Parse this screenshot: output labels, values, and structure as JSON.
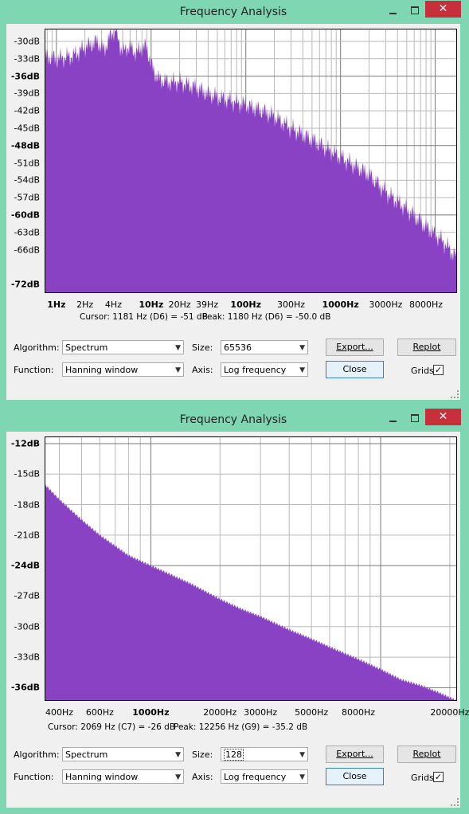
{
  "colors": {
    "fill": "#8a42c4",
    "grid": "#b4b4b4",
    "border": "#000000",
    "frame": "#7fd6b3"
  },
  "windows": [
    {
      "title": "Frequency Analysis",
      "close_glyph": "✕",
      "cursor_text": "Cursor: 1181 Hz (D6) = -51 dB",
      "peak_text": "Peak: 1180 Hz (D6) = -50.0 dB",
      "algorithm_label": "Algorithm:",
      "algorithm_value": "Spectrum",
      "size_label": "Size:",
      "size_value": "65536",
      "function_label": "Function:",
      "function_value": "Hanning window",
      "axis_label": "Axis:",
      "axis_value": "Log frequency",
      "export_label": "Export...",
      "replot_label": "Replot",
      "close_label": "Close",
      "grids_label": "Grids",
      "grids_checked": true,
      "y_ticks": [
        {
          "label": "-30dB",
          "db": -30,
          "bold": false
        },
        {
          "label": "-33dB",
          "db": -33,
          "bold": false
        },
        {
          "label": "-36dB",
          "db": -36,
          "bold": true
        },
        {
          "label": "-39dB",
          "db": -39,
          "bold": false
        },
        {
          "label": "-42dB",
          "db": -42,
          "bold": false
        },
        {
          "label": "-45dB",
          "db": -45,
          "bold": false
        },
        {
          "label": "-48dB",
          "db": -48,
          "bold": true
        },
        {
          "label": "-51dB",
          "db": -51,
          "bold": false
        },
        {
          "label": "-54dB",
          "db": -54,
          "bold": false
        },
        {
          "label": "-57dB",
          "db": -57,
          "bold": false
        },
        {
          "label": "-60dB",
          "db": -60,
          "bold": true
        },
        {
          "label": "-63dB",
          "db": -63,
          "bold": false
        },
        {
          "label": "-66dB",
          "db": -66,
          "bold": false
        },
        {
          "label": "-72dB",
          "db": -72,
          "bold": true
        }
      ],
      "x_ticks": [
        {
          "label": "1Hz",
          "hz": 1,
          "bold": true
        },
        {
          "label": "2Hz",
          "hz": 2,
          "bold": false
        },
        {
          "label": "4Hz",
          "hz": 4,
          "bold": false
        },
        {
          "label": "10Hz",
          "hz": 10,
          "bold": true
        },
        {
          "label": "20Hz",
          "hz": 20,
          "bold": false
        },
        {
          "label": "39Hz",
          "hz": 39,
          "bold": false
        },
        {
          "label": "100Hz",
          "hz": 100,
          "bold": true
        },
        {
          "label": "300Hz",
          "hz": 300,
          "bold": false
        },
        {
          "label": "1000Hz",
          "hz": 1000,
          "bold": true
        },
        {
          "label": "3000Hz",
          "hz": 3000,
          "bold": false
        },
        {
          "label": "8000Hz",
          "hz": 8000,
          "bold": false
        }
      ]
    },
    {
      "title": "Frequency Analysis",
      "close_glyph": "✕",
      "cursor_text": "Cursor: 2069 Hz (C7) = -26 dB",
      "peak_text": "Peak: 12256 Hz (G9) = -35.2 dB",
      "algorithm_label": "Algorithm:",
      "algorithm_value": "Spectrum",
      "size_label": "Size:",
      "size_value": "128",
      "function_label": "Function:",
      "function_value": "Hanning window",
      "axis_label": "Axis:",
      "axis_value": "Log frequency",
      "export_label": "Export...",
      "replot_label": "Replot",
      "close_label": "Close",
      "grids_label": "Grids",
      "grids_checked": true,
      "y_ticks": [
        {
          "label": "-12dB",
          "db": -12,
          "bold": true
        },
        {
          "label": "-15dB",
          "db": -15,
          "bold": false
        },
        {
          "label": "-18dB",
          "db": -18,
          "bold": false
        },
        {
          "label": "-21dB",
          "db": -21,
          "bold": false
        },
        {
          "label": "-24dB",
          "db": -24,
          "bold": true
        },
        {
          "label": "-27dB",
          "db": -27,
          "bold": false
        },
        {
          "label": "-30dB",
          "db": -30,
          "bold": false
        },
        {
          "label": "-33dB",
          "db": -33,
          "bold": false
        },
        {
          "label": "-36dB",
          "db": -36,
          "bold": true
        }
      ],
      "x_ticks": [
        {
          "label": "400Hz",
          "hz": 400,
          "bold": false
        },
        {
          "label": "600Hz",
          "hz": 600,
          "bold": false
        },
        {
          "label": "1000Hz",
          "hz": 1000,
          "bold": true
        },
        {
          "label": "2000Hz",
          "hz": 2000,
          "bold": false
        },
        {
          "label": "3000Hz",
          "hz": 3000,
          "bold": false
        },
        {
          "label": "5000Hz",
          "hz": 5000,
          "bold": false
        },
        {
          "label": "8000Hz",
          "hz": 8000,
          "bold": false
        },
        {
          "label": "20000Hz",
          "hz": 20000,
          "bold": false
        }
      ]
    }
  ],
  "chart_data": [
    {
      "type": "area",
      "x_scale": "log",
      "grid": true,
      "xlim": [
        0.75,
        17000
      ],
      "ylim": [
        -73.5,
        -27.8
      ],
      "series": [
        {
          "x": [
            0.75,
            1,
            1.5,
            2,
            2.7,
            3.2,
            3.7,
            4.2,
            5,
            5.5,
            6,
            7,
            8,
            9,
            10,
            11,
            12,
            15,
            20,
            30,
            39,
            60,
            100,
            150,
            200,
            300,
            500,
            1000,
            2000,
            3000,
            5000,
            8000,
            12000,
            17000
          ],
          "y": [
            -32.5,
            -33,
            -32.5,
            -31,
            -30,
            -31.5,
            -29,
            -28,
            -32,
            -31,
            -31,
            -32,
            -31,
            -31,
            -34,
            -35.5,
            -36.5,
            -37,
            -37,
            -38,
            -39,
            -40,
            -41,
            -42,
            -43,
            -45,
            -47,
            -50,
            -53,
            -56,
            -59,
            -62,
            -64.5,
            -67.5
          ]
        }
      ]
    },
    {
      "type": "area",
      "x_scale": "log",
      "grid": true,
      "xlim": [
        345,
        21500
      ],
      "ylim": [
        -37.3,
        -11.3
      ],
      "series": [
        {
          "x": [
            345,
            400,
            500,
            600,
            800,
            1000,
            1200,
            1500,
            2000,
            2500,
            3000,
            4000,
            5000,
            6000,
            8000,
            10000,
            12256,
            15000,
            18000,
            21500
          ],
          "y": [
            -16,
            -17.5,
            -19.5,
            -21,
            -23,
            -24,
            -24.8,
            -25.8,
            -27.3,
            -28.3,
            -29,
            -30.3,
            -31.2,
            -32,
            -33.2,
            -34.2,
            -35.2,
            -35.8,
            -36.5,
            -37.3
          ]
        }
      ]
    }
  ]
}
